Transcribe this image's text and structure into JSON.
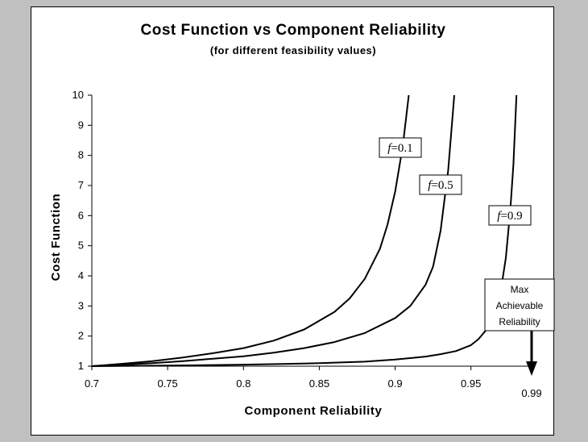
{
  "chart_data": {
    "type": "line",
    "title": "Cost Function vs Component Reliability",
    "subtitle": "(for different feasibility values)",
    "xlabel": "Component Reliability",
    "ylabel": "Cost Function",
    "xlim": [
      0.7,
      0.99
    ],
    "ylim": [
      1,
      10
    ],
    "x_ticks": [
      "0.7",
      "0.75",
      "0.8",
      "0.85",
      "0.9",
      "0.95"
    ],
    "y_ticks": [
      "1",
      "2",
      "3",
      "4",
      "5",
      "6",
      "7",
      "8",
      "9",
      "10"
    ],
    "grid": false,
    "series": [
      {
        "name": "f=0.1",
        "label_symbol": "f",
        "label_value": "=0.1",
        "x": [
          0.7,
          0.72,
          0.74,
          0.76,
          0.78,
          0.8,
          0.82,
          0.84,
          0.86,
          0.87,
          0.88,
          0.89,
          0.895,
          0.9,
          0.905,
          0.909
        ],
        "y": [
          1.0,
          1.08,
          1.17,
          1.29,
          1.43,
          1.6,
          1.85,
          2.22,
          2.8,
          3.25,
          3.9,
          4.9,
          5.7,
          6.8,
          8.3,
          10.0
        ]
      },
      {
        "name": "f=0.5",
        "label_symbol": "f",
        "label_value": "=0.5",
        "x": [
          0.7,
          0.72,
          0.74,
          0.76,
          0.78,
          0.8,
          0.82,
          0.84,
          0.86,
          0.88,
          0.9,
          0.91,
          0.92,
          0.925,
          0.93,
          0.935,
          0.939
        ],
        "y": [
          1.0,
          1.05,
          1.1,
          1.17,
          1.25,
          1.33,
          1.45,
          1.6,
          1.8,
          2.1,
          2.6,
          3.0,
          3.7,
          4.3,
          5.5,
          7.5,
          10.0
        ]
      },
      {
        "name": "f=0.9",
        "label_symbol": "f",
        "label_value": "=0.9",
        "x": [
          0.7,
          0.75,
          0.8,
          0.85,
          0.88,
          0.9,
          0.92,
          0.93,
          0.94,
          0.95,
          0.955,
          0.96,
          0.965,
          0.97,
          0.973,
          0.976,
          0.978,
          0.98
        ],
        "y": [
          1.0,
          1.02,
          1.05,
          1.1,
          1.15,
          1.22,
          1.32,
          1.4,
          1.5,
          1.7,
          1.9,
          2.2,
          2.7,
          3.6,
          4.6,
          6.2,
          7.7,
          10.0
        ]
      }
    ],
    "annotation": {
      "lines": [
        "Max",
        "Achievable",
        "Reliability"
      ],
      "value_label": "0.99",
      "x": 0.99
    }
  }
}
